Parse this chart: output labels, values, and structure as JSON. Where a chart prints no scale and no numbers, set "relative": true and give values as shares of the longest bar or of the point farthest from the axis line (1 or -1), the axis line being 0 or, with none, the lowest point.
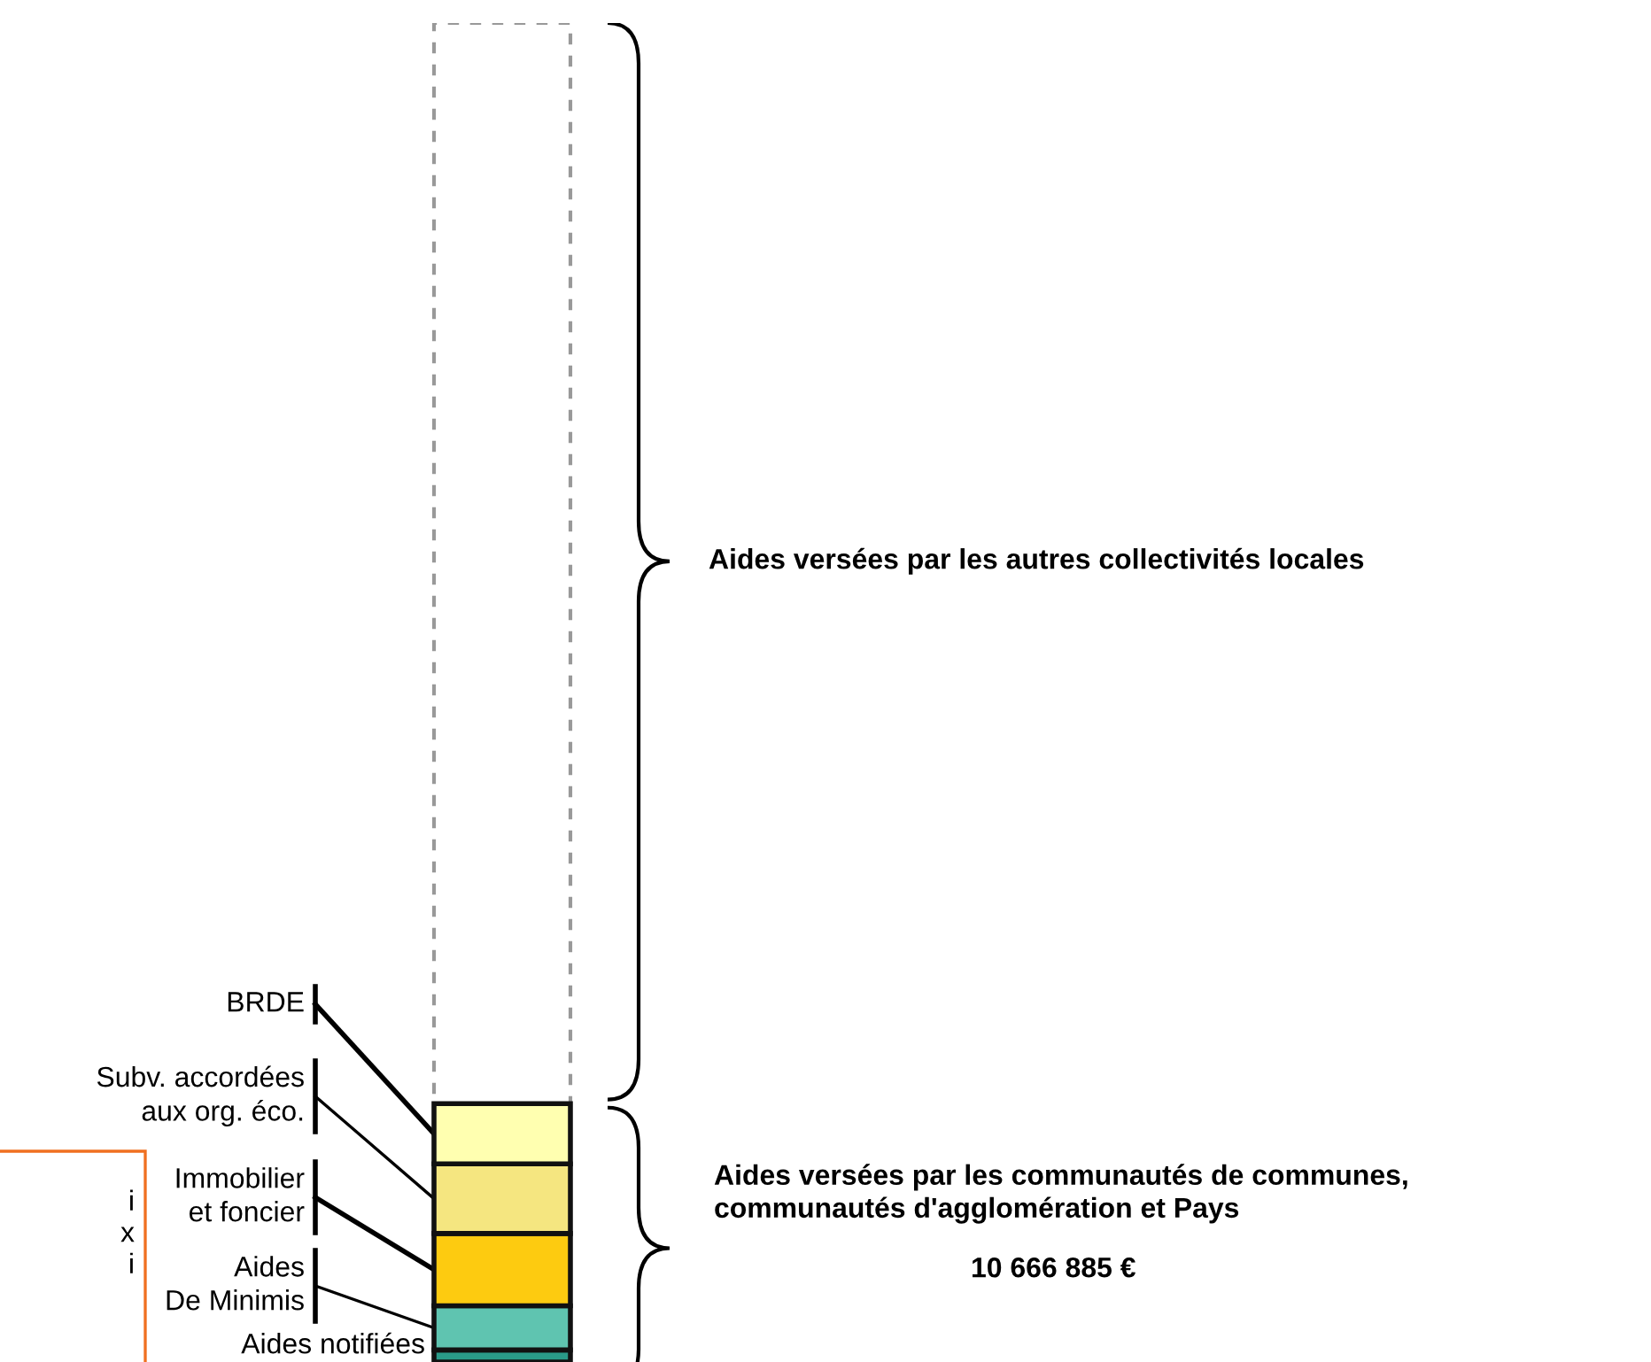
{
  "chart_data": {
    "type": "bar",
    "stacked": true,
    "relative": true,
    "categories": [
      null
    ],
    "series": [
      {
        "name": "Aides notifiées",
        "color": "#2a9a88",
        "values": [
          0.009
        ]
      },
      {
        "name": "Aides\nDe Minimis",
        "color": "#5fc4b0",
        "values": [
          0.033
        ]
      },
      {
        "name": "Immobilier\net foncier",
        "color": "#fdcb10",
        "values": [
          0.054
        ]
      },
      {
        "name": "Subv. accordées\naux org. éco.",
        "color": "#f5e680",
        "values": [
          0.052
        ]
      },
      {
        "name": "BRDE",
        "color": "#ffffb0",
        "values": [
          0.045
        ]
      },
      {
        "color": "#ffffff",
        "line_style": "dashed",
        "values": [
          0.807
        ]
      }
    ],
    "annotations": [
      "Aides versées par les autres collectivités locales",
      "Aides versées par les communautés de communes,\ncommunautés d'agglomération et Pays",
      "10 666 885 €",
      "i\nx\ni"
    ]
  }
}
